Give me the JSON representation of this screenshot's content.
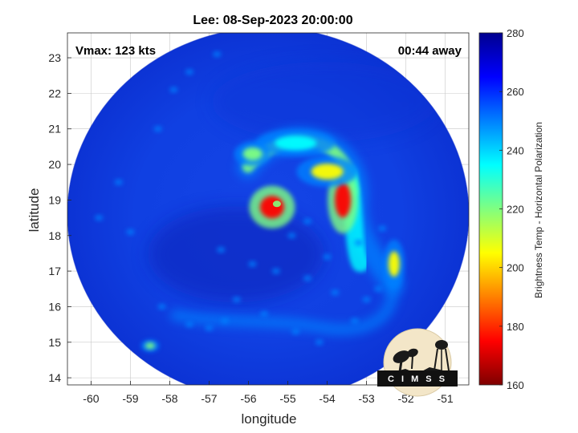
{
  "title": "Lee: 08-Sep-2023 20:00:00",
  "vmax_text": "Vmax: 123 kts",
  "time_away_text": "00:44 away",
  "logo": {
    "text": "C I M S S"
  },
  "chart_data": {
    "type": "heatmap",
    "title": "Lee: 08-Sep-2023 20:00:00",
    "xlabel": "longitude",
    "ylabel": "latitude",
    "xlim": [
      -60.6,
      -50.4
    ],
    "ylim": [
      13.8,
      23.7
    ],
    "xticks": [
      -60,
      -59,
      -58,
      -57,
      -56,
      -55,
      -54,
      -53,
      -52,
      -51
    ],
    "yticks": [
      14,
      15,
      16,
      17,
      18,
      19,
      20,
      21,
      22,
      23
    ],
    "grid": true,
    "swath": {
      "center_lon": -55.5,
      "center_lat": 18.6
    },
    "storm_center": {
      "lon": -55.4,
      "lat": 18.8
    },
    "colorbar": {
      "label": "Brightness Temp - Horizontal Polarization",
      "min": 160,
      "max": 280,
      "ticks": [
        160,
        180,
        200,
        220,
        240,
        260,
        280
      ],
      "colors": [
        "#7f0000",
        "#ff0000",
        "#ff8000",
        "#ffff00",
        "#80ff80",
        "#00ffff",
        "#0080ff",
        "#0000ff",
        "#00008f"
      ]
    },
    "features": [
      {
        "name": "eye-ring",
        "lon": -55.4,
        "lat": 18.8,
        "bt": 172
      },
      {
        "name": "eastern-band-core",
        "lon": -53.6,
        "lat": 19.0,
        "bt": 175
      },
      {
        "name": "northeast-band",
        "lon": -54.0,
        "lat": 19.8,
        "bt": 205
      },
      {
        "name": "north-band",
        "lon": -54.8,
        "lat": 20.6,
        "bt": 230
      },
      {
        "name": "northwest-band-tip",
        "lon": -55.9,
        "lat": 20.3,
        "bt": 215
      },
      {
        "name": "southeast-band",
        "lon": -52.3,
        "lat": 17.2,
        "bt": 205
      },
      {
        "name": "southwest-cell",
        "lon": -58.5,
        "lat": 14.9,
        "bt": 215
      }
    ]
  }
}
